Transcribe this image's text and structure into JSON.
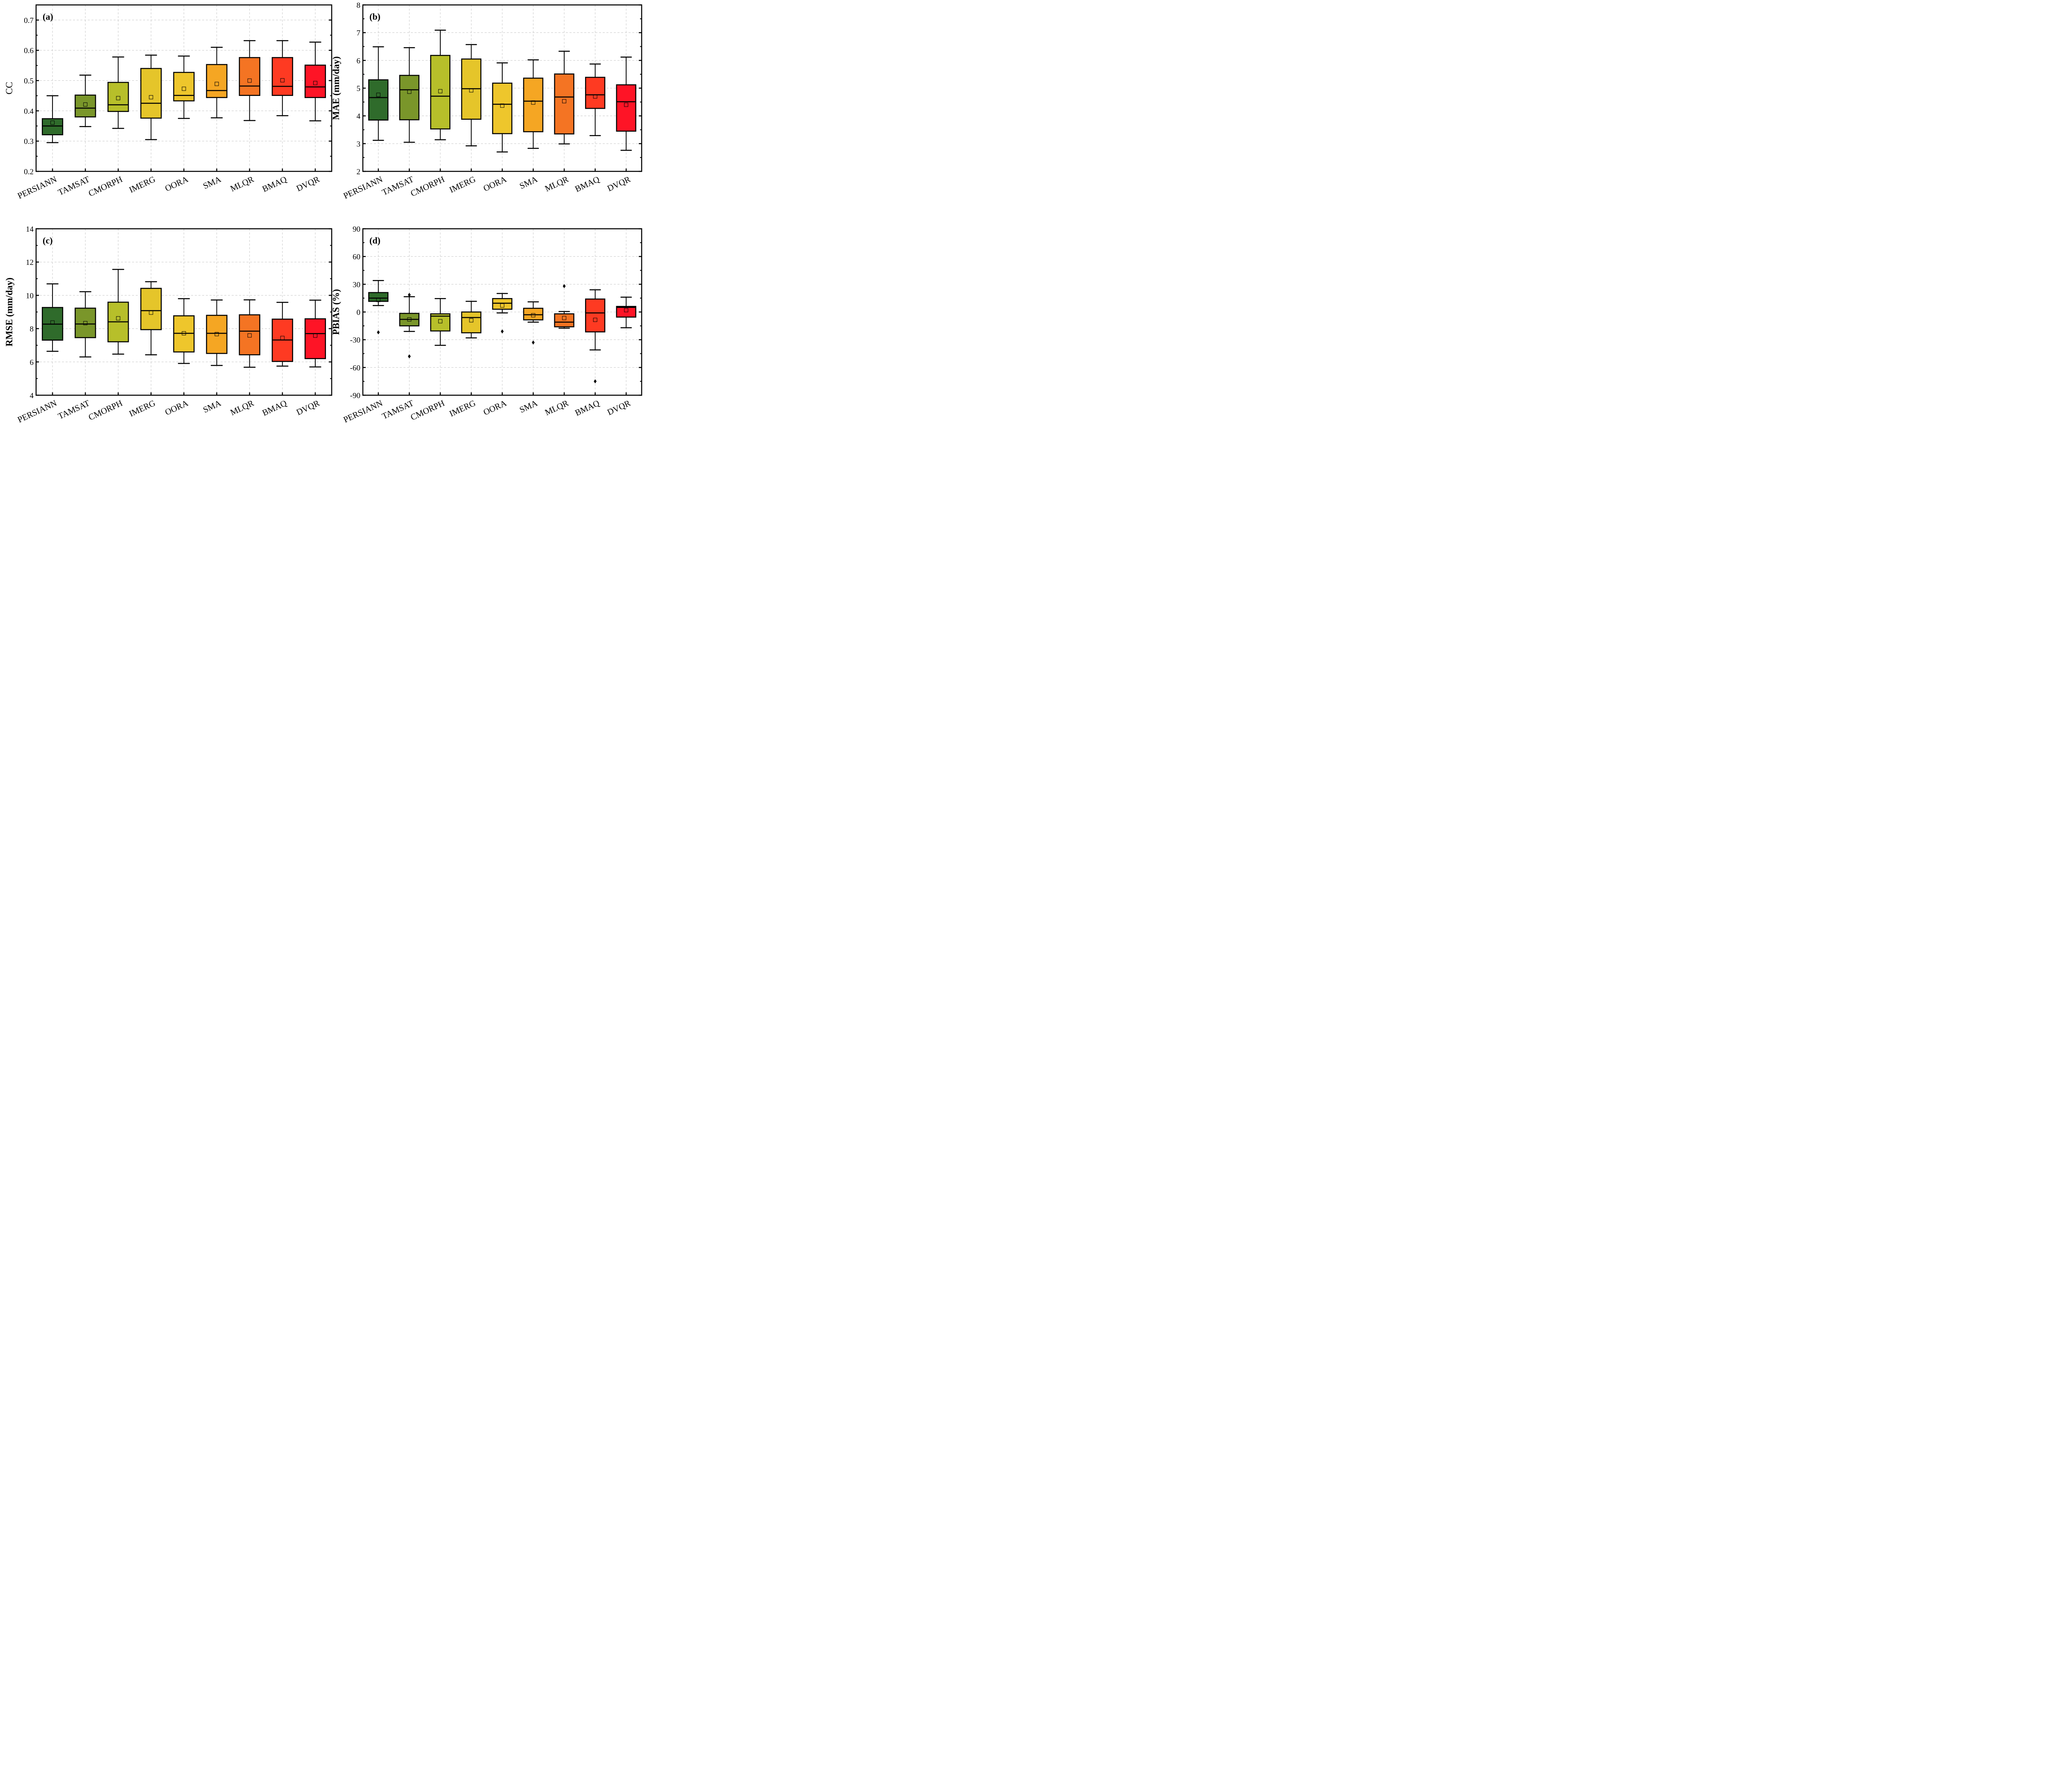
{
  "chart_data": [
    {
      "type": "box",
      "panel_label": "(a)",
      "ylabel": "CC",
      "ylabel_bold": false,
      "ylim": [
        0.2,
        0.75
      ],
      "yticks": [
        0.2,
        0.3,
        0.4,
        0.5,
        0.6,
        0.7
      ],
      "ytick_labels": [
        "0.2",
        "0.3",
        "0.4",
        "0.5",
        "0.6",
        "0.7"
      ],
      "minor_step": 0.05,
      "grid": true,
      "categories": [
        "PERSIANN",
        "TAMSAT",
        "CMORPH",
        "IMERG",
        "OORA",
        "SMA",
        "MLQR",
        "BMAQ",
        "DVQR"
      ],
      "boxes": [
        {
          "whisker_low": 0.295,
          "q1": 0.321,
          "median": 0.35,
          "q3": 0.374,
          "whisker_high": 0.45,
          "mean": 0.361,
          "outliers": []
        },
        {
          "whisker_low": 0.348,
          "q1": 0.38,
          "median": 0.409,
          "q3": 0.452,
          "whisker_high": 0.518,
          "mean": 0.421,
          "outliers": []
        },
        {
          "whisker_low": 0.342,
          "q1": 0.398,
          "median": 0.42,
          "q3": 0.494,
          "whisker_high": 0.578,
          "mean": 0.442,
          "outliers": []
        },
        {
          "whisker_low": 0.305,
          "q1": 0.376,
          "median": 0.425,
          "q3": 0.54,
          "whisker_high": 0.584,
          "mean": 0.445,
          "outliers": []
        },
        {
          "whisker_low": 0.375,
          "q1": 0.433,
          "median": 0.451,
          "q3": 0.527,
          "whisker_high": 0.581,
          "mean": 0.473,
          "outliers": []
        },
        {
          "whisker_low": 0.377,
          "q1": 0.444,
          "median": 0.467,
          "q3": 0.553,
          "whisker_high": 0.61,
          "mean": 0.489,
          "outliers": []
        },
        {
          "whisker_low": 0.368,
          "q1": 0.451,
          "median": 0.482,
          "q3": 0.576,
          "whisker_high": 0.632,
          "mean": 0.5,
          "outliers": []
        },
        {
          "whisker_low": 0.384,
          "q1": 0.451,
          "median": 0.481,
          "q3": 0.576,
          "whisker_high": 0.632,
          "mean": 0.501,
          "outliers": []
        },
        {
          "whisker_low": 0.367,
          "q1": 0.444,
          "median": 0.479,
          "q3": 0.551,
          "whisker_high": 0.627,
          "mean": 0.492,
          "outliers": []
        }
      ]
    },
    {
      "type": "box",
      "panel_label": "(b)",
      "ylabel": "MAE (mm/day)",
      "ylabel_bold": true,
      "ylim": [
        2,
        8
      ],
      "yticks": [
        2,
        3,
        4,
        5,
        6,
        7,
        8
      ],
      "ytick_labels": [
        "2",
        "3",
        "4",
        "5",
        "6",
        "7",
        "8"
      ],
      "minor_step": 0.5,
      "grid": true,
      "categories": [
        "PERSIANN",
        "TAMSAT",
        "CMORPH",
        "IMERG",
        "OORA",
        "SMA",
        "MLQR",
        "BMAQ",
        "DVQR"
      ],
      "boxes": [
        {
          "whisker_low": 3.12,
          "q1": 3.85,
          "median": 4.66,
          "q3": 5.3,
          "whisker_high": 6.49,
          "mean": 4.76,
          "outliers": []
        },
        {
          "whisker_low": 3.05,
          "q1": 3.86,
          "median": 4.94,
          "q3": 5.46,
          "whisker_high": 6.46,
          "mean": 4.87,
          "outliers": []
        },
        {
          "whisker_low": 3.14,
          "q1": 3.53,
          "median": 4.71,
          "q3": 6.18,
          "whisker_high": 7.09,
          "mean": 4.89,
          "outliers": []
        },
        {
          "whisker_low": 2.92,
          "q1": 3.88,
          "median": 4.98,
          "q3": 6.05,
          "whisker_high": 6.57,
          "mean": 4.92,
          "outliers": []
        },
        {
          "whisker_low": 2.7,
          "q1": 3.36,
          "median": 4.42,
          "q3": 5.18,
          "whisker_high": 5.91,
          "mean": 4.37,
          "outliers": []
        },
        {
          "whisker_low": 2.83,
          "q1": 3.43,
          "median": 4.53,
          "q3": 5.36,
          "whisker_high": 6.02,
          "mean": 4.48,
          "outliers": []
        },
        {
          "whisker_low": 2.99,
          "q1": 3.35,
          "median": 4.68,
          "q3": 5.51,
          "whisker_high": 6.33,
          "mean": 4.53,
          "outliers": []
        },
        {
          "whisker_low": 3.29,
          "q1": 4.27,
          "median": 4.76,
          "q3": 5.39,
          "whisker_high": 5.87,
          "mean": 4.7,
          "outliers": []
        },
        {
          "whisker_low": 2.76,
          "q1": 3.45,
          "median": 4.51,
          "q3": 5.12,
          "whisker_high": 6.12,
          "mean": 4.4,
          "outliers": []
        }
      ]
    },
    {
      "type": "box",
      "panel_label": "(c)",
      "ylabel": "RMSE (mm/day)",
      "ylabel_bold": true,
      "ylim": [
        4,
        14
      ],
      "yticks": [
        4,
        6,
        8,
        10,
        12,
        14
      ],
      "ytick_labels": [
        "4",
        "6",
        "8",
        "10",
        "12",
        "14"
      ],
      "minor_step": 1,
      "grid": true,
      "categories": [
        "PERSIANN",
        "TAMSAT",
        "CMORPH",
        "IMERG",
        "OORA",
        "SMA",
        "MLQR",
        "BMAQ",
        "DVQR"
      ],
      "boxes": [
        {
          "whisker_low": 6.64,
          "q1": 7.31,
          "median": 8.27,
          "q3": 9.27,
          "whisker_high": 10.69,
          "mean": 8.37,
          "outliers": []
        },
        {
          "whisker_low": 6.3,
          "q1": 7.46,
          "median": 8.28,
          "q3": 9.23,
          "whisker_high": 10.22,
          "mean": 8.33,
          "outliers": []
        },
        {
          "whisker_low": 6.47,
          "q1": 7.21,
          "median": 8.41,
          "q3": 9.59,
          "whisker_high": 11.56,
          "mean": 8.62,
          "outliers": []
        },
        {
          "whisker_low": 6.43,
          "q1": 7.94,
          "median": 9.08,
          "q3": 10.42,
          "whisker_high": 10.82,
          "mean": 8.96,
          "outliers": []
        },
        {
          "whisker_low": 5.91,
          "q1": 6.6,
          "median": 7.72,
          "q3": 8.77,
          "whisker_high": 9.8,
          "mean": 7.72,
          "outliers": []
        },
        {
          "whisker_low": 5.79,
          "q1": 6.51,
          "median": 7.72,
          "q3": 8.8,
          "whisker_high": 9.72,
          "mean": 7.67,
          "outliers": []
        },
        {
          "whisker_low": 5.68,
          "q1": 6.43,
          "median": 7.85,
          "q3": 8.83,
          "whisker_high": 9.73,
          "mean": 7.59,
          "outliers": []
        },
        {
          "whisker_low": 5.75,
          "q1": 6.03,
          "median": 7.32,
          "q3": 8.57,
          "whisker_high": 9.58,
          "mean": 7.44,
          "outliers": []
        },
        {
          "whisker_low": 5.7,
          "q1": 6.2,
          "median": 7.7,
          "q3": 8.59,
          "whisker_high": 9.71,
          "mean": 7.58,
          "outliers": []
        }
      ]
    },
    {
      "type": "box",
      "panel_label": "(d)",
      "ylabel": "PBIAS (%)",
      "ylabel_bold": true,
      "ylim": [
        -90,
        90
      ],
      "yticks": [
        -90,
        -60,
        -30,
        0,
        30,
        60,
        90
      ],
      "ytick_labels": [
        "-90",
        "-60",
        "-30",
        "0",
        "30",
        "60",
        "90"
      ],
      "minor_step": 15,
      "grid": true,
      "categories": [
        "PERSIANN",
        "TAMSAT",
        "CMORPH",
        "IMERG",
        "OORA",
        "SMA",
        "MLQR",
        "BMAQ",
        "DVQR"
      ],
      "boxes": [
        {
          "whisker_low": 7,
          "q1": 11.5,
          "median": 15,
          "q3": 21,
          "whisker_high": 34,
          "mean": 13,
          "outliers": [
            -22
          ]
        },
        {
          "whisker_low": -21,
          "q1": -15,
          "median": -8,
          "q3": -1.5,
          "whisker_high": 16.5,
          "mean": -8,
          "outliers": [
            18.5,
            -48
          ]
        },
        {
          "whisker_low": -36,
          "q1": -20.5,
          "median": -4.5,
          "q3": -2,
          "whisker_high": 14.5,
          "mean": -10,
          "outliers": []
        },
        {
          "whisker_low": -28,
          "q1": -22.5,
          "median": -6,
          "q3": 0,
          "whisker_high": 11.5,
          "mean": -9,
          "outliers": []
        },
        {
          "whisker_low": -1,
          "q1": 3,
          "median": 9.5,
          "q3": 14.5,
          "whisker_high": 20,
          "mean": 7,
          "outliers": [
            -21
          ]
        },
        {
          "whisker_low": -11,
          "q1": -8.5,
          "median": -3,
          "q3": 4,
          "whisker_high": 11,
          "mean": -3.5,
          "outliers": [
            -33
          ]
        },
        {
          "whisker_low": -17.5,
          "q1": -16,
          "median": -11,
          "q3": -2,
          "whisker_high": 0.5,
          "mean": -6.5,
          "outliers": [
            28
          ]
        },
        {
          "whisker_low": -41,
          "q1": -21.5,
          "median": -1,
          "q3": 14,
          "whisker_high": 24,
          "mean": -8.5,
          "outliers": [
            -75
          ]
        },
        {
          "whisker_low": -17,
          "q1": -5.5,
          "median": 5,
          "q3": 6,
          "whisker_high": 16,
          "mean": 2,
          "outliers": []
        }
      ]
    }
  ],
  "colors": {
    "PERSIANN": "#2f6b2b",
    "TAMSAT": "#7a962a",
    "CMORPH": "#b7bf2a",
    "IMERG": "#e5c52a",
    "OORA": "#eec62c",
    "SMA": "#f5a623",
    "MLQR": "#f47423",
    "BMAQ": "#fe3a22",
    "DVQR": "#fe1426",
    "grid": "#c8c8c8"
  }
}
